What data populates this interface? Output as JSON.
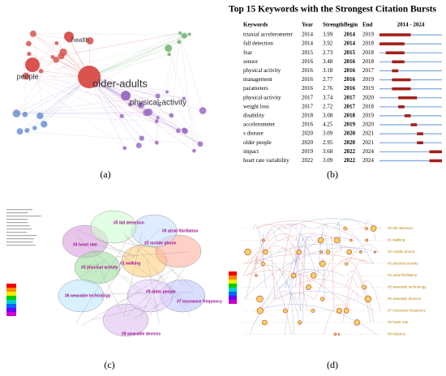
{
  "panel_a": {
    "caption": "(a)",
    "labels": [
      "older-adults",
      "people",
      "health",
      "physical-activity"
    ]
  },
  "panel_b": {
    "caption": "(b)",
    "table": {
      "title": "Top 15 Keywords with the Strongest Citation Bursts",
      "columns": [
        "Keywords",
        "Year",
        "Strength",
        "Begin",
        "End",
        "2014 - 2024"
      ],
      "xlim": [
        2014,
        2024
      ],
      "rows": [
        [
          "triaxial accelerometer",
          2014,
          3.99,
          2014,
          2019
        ],
        [
          "fall detection",
          2014,
          3.92,
          2014,
          2018
        ],
        [
          "fear",
          2015,
          2.73,
          2015,
          2018
        ],
        [
          "sensor",
          2016,
          3.48,
          2016,
          2018
        ],
        [
          "physical activity",
          2016,
          3.18,
          2016,
          2017
        ],
        [
          "management",
          2016,
          2.77,
          2016,
          2019
        ],
        [
          "parameters",
          2016,
          2.76,
          2016,
          2019
        ],
        [
          "physical-activity",
          2017,
          3.74,
          2017,
          2020
        ],
        [
          "weight loss",
          2017,
          2.72,
          2017,
          2018
        ],
        [
          "disability",
          2018,
          3.08,
          2018,
          2019
        ],
        [
          "accelerometer",
          2016,
          4.25,
          2019,
          2020
        ],
        [
          "s disease",
          2020,
          3.09,
          2020,
          2021
        ],
        [
          "older people",
          2020,
          2.95,
          2020,
          2021
        ],
        [
          "impact",
          2019,
          3.68,
          2022,
          2024
        ],
        [
          "heart rate variability",
          2022,
          3.09,
          2022,
          2024
        ]
      ]
    }
  },
  "panel_c": {
    "caption": "(c)",
    "clusters": [
      "#4 heart rate",
      "#3 physical activity",
      "#6 wearable technology",
      "#1 walking",
      "#0 atrial fibrillation",
      "#2 mobile phone",
      "#5 fall detection",
      "#7 insurance frequency",
      "#8 wearable devices",
      "#9 older people"
    ]
  },
  "panel_d": {
    "caption": "(d)",
    "clusters": [
      "#0 fall detection",
      "#1 walking",
      "#2 mobile phone",
      "#3 physical activity",
      "#4 atrial fibrillation",
      "#5 wearable technology",
      "#6 wearable devices",
      "#7 insurance frequency",
      "#8 heart rate",
      "#9 balance"
    ]
  }
}
